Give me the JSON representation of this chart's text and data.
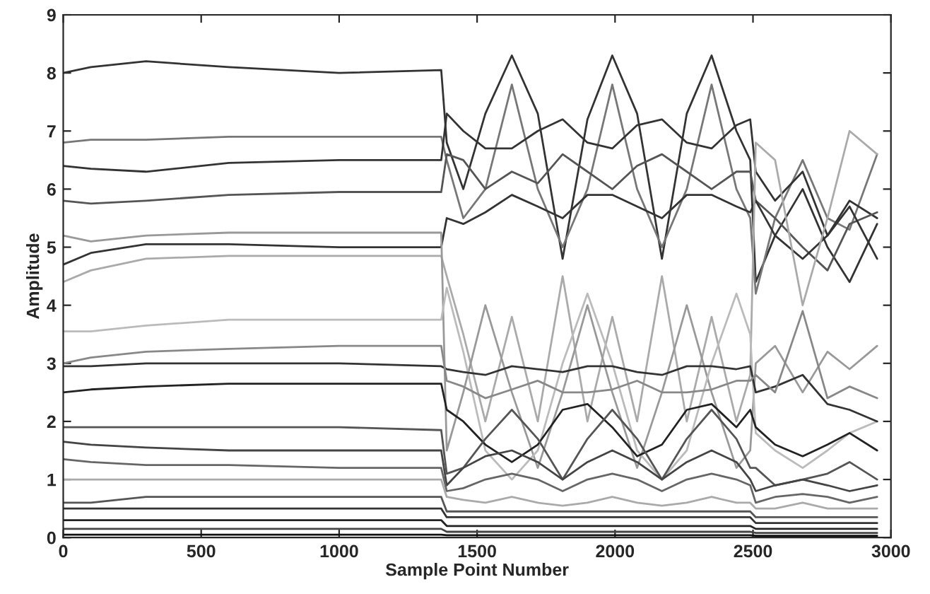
{
  "chart_data": {
    "type": "line",
    "xlabel": "Sample Point Number",
    "ylabel": "Amplitude",
    "xlim": [
      0,
      3000
    ],
    "ylim": [
      0,
      9
    ],
    "xticks": [
      0,
      500,
      1000,
      1500,
      2000,
      2500,
      3000
    ],
    "yticks": [
      0,
      1,
      2,
      3,
      4,
      5,
      6,
      7,
      8,
      9
    ],
    "grid": false,
    "legend": false,
    "line_style": "solid",
    "x": [
      0,
      100,
      300,
      600,
      1000,
      1370,
      1390,
      1450,
      1530,
      1626,
      1720,
      1810,
      1900,
      1990,
      2080,
      2170,
      2260,
      2350,
      2440,
      2490,
      2510,
      2580,
      2680,
      2770,
      2850,
      2950
    ],
    "series": [
      {
        "color": "#333333",
        "values": [
          8.0,
          8.1,
          8.2,
          8.1,
          8.0,
          8.05,
          6.8,
          6.0,
          7.3,
          8.3,
          7.3,
          4.8,
          7.2,
          8.3,
          7.3,
          4.8,
          7.3,
          8.3,
          7.0,
          6.5,
          4.4,
          5.2,
          6.0,
          5.0,
          4.4,
          5.4
        ]
      },
      {
        "color": "#777777",
        "values": [
          6.8,
          6.85,
          6.85,
          6.9,
          6.9,
          6.9,
          6.5,
          5.5,
          6.0,
          7.8,
          6.0,
          5.0,
          6.0,
          7.8,
          6.0,
          5.0,
          6.0,
          7.8,
          6.0,
          5.5,
          4.2,
          5.5,
          6.5,
          5.5,
          5.3,
          6.6
        ]
      },
      {
        "color": "#333333",
        "values": [
          6.4,
          6.35,
          6.3,
          6.45,
          6.5,
          6.5,
          7.3,
          7.0,
          6.7,
          6.7,
          7.0,
          7.2,
          6.8,
          6.7,
          7.1,
          7.2,
          6.8,
          6.7,
          7.1,
          7.2,
          6.3,
          5.8,
          6.3,
          5.2,
          5.8,
          5.5
        ]
      },
      {
        "color": "#555555",
        "values": [
          5.8,
          5.75,
          5.8,
          5.9,
          5.95,
          5.95,
          6.6,
          6.5,
          6.0,
          6.3,
          6.1,
          6.6,
          6.3,
          6.0,
          6.4,
          6.6,
          6.3,
          6.0,
          6.3,
          6.3,
          5.8,
          5.5,
          5.0,
          4.6,
          5.4,
          5.6
        ]
      },
      {
        "color": "#333333",
        "values": [
          4.7,
          4.9,
          5.05,
          5.05,
          5.0,
          5.0,
          5.5,
          5.4,
          5.6,
          5.9,
          5.7,
          5.5,
          5.9,
          5.9,
          5.7,
          5.5,
          5.9,
          5.9,
          5.7,
          5.6,
          5.8,
          5.2,
          4.8,
          5.2,
          5.7,
          4.8
        ]
      },
      {
        "color": "#aaaaaa",
        "values": [
          4.4,
          4.6,
          4.8,
          4.85,
          4.85,
          4.85,
          4.5,
          3.5,
          2.0,
          3.8,
          2.0,
          4.5,
          2.0,
          3.8,
          2.0,
          4.5,
          2.0,
          3.8,
          2.0,
          2.8,
          6.8,
          6.5,
          4.0,
          5.5,
          7.0,
          6.6
        ]
      },
      {
        "color": "#999999",
        "values": [
          5.2,
          5.1,
          5.2,
          5.25,
          5.25,
          5.25,
          1.5,
          2.5,
          4.0,
          2.5,
          1.2,
          2.5,
          4.0,
          2.5,
          1.2,
          2.5,
          4.0,
          2.5,
          1.2,
          1.5,
          3.0,
          3.3,
          2.5,
          3.2,
          2.9,
          3.3
        ]
      },
      {
        "color": "#bbbbbb",
        "values": [
          3.55,
          3.55,
          3.65,
          3.75,
          3.75,
          3.75,
          4.3,
          3.2,
          1.5,
          1.0,
          1.5,
          3.0,
          4.2,
          3.0,
          1.5,
          1.0,
          1.5,
          3.0,
          4.2,
          3.5,
          1.8,
          1.5,
          1.2,
          1.5,
          1.8,
          2.0
        ]
      },
      {
        "color": "#333333",
        "values": [
          2.95,
          2.95,
          3.0,
          3.0,
          3.0,
          2.95,
          2.9,
          2.85,
          2.8,
          2.95,
          2.9,
          2.85,
          2.95,
          2.95,
          2.85,
          2.8,
          2.95,
          2.95,
          2.9,
          2.95,
          2.5,
          2.6,
          2.8,
          2.3,
          2.2,
          2.0
        ]
      },
      {
        "color": "#888888",
        "values": [
          3.0,
          3.1,
          3.2,
          3.25,
          3.3,
          3.3,
          2.7,
          2.6,
          2.4,
          2.55,
          2.7,
          2.5,
          2.5,
          2.55,
          2.7,
          2.5,
          2.5,
          2.55,
          2.7,
          2.7,
          2.8,
          2.5,
          3.9,
          2.4,
          2.6,
          2.4
        ]
      },
      {
        "color": "#222222",
        "values": [
          2.5,
          2.55,
          2.6,
          2.65,
          2.65,
          2.65,
          2.2,
          2.0,
          1.6,
          1.3,
          1.6,
          2.2,
          2.3,
          1.9,
          1.4,
          1.6,
          2.2,
          2.3,
          1.9,
          2.2,
          1.9,
          1.6,
          1.4,
          1.6,
          1.8,
          1.5
        ]
      },
      {
        "color": "#555555",
        "values": [
          1.9,
          1.9,
          1.9,
          1.9,
          1.9,
          1.85,
          1.1,
          1.2,
          1.7,
          2.2,
          1.7,
          1.0,
          1.7,
          2.2,
          1.7,
          1.0,
          1.7,
          2.2,
          1.7,
          1.2,
          1.2,
          0.9,
          1.0,
          1.1,
          1.3,
          1.0
        ]
      },
      {
        "color": "#444444",
        "values": [
          1.65,
          1.6,
          1.55,
          1.5,
          1.5,
          1.5,
          0.9,
          1.2,
          1.4,
          1.5,
          1.3,
          1.0,
          1.3,
          1.5,
          1.3,
          1.0,
          1.3,
          1.5,
          1.3,
          1.0,
          0.8,
          0.9,
          1.0,
          0.9,
          0.8,
          0.9
        ]
      },
      {
        "color": "#666666",
        "values": [
          1.35,
          1.3,
          1.25,
          1.25,
          1.2,
          1.2,
          0.8,
          0.85,
          1.0,
          1.1,
          1.0,
          0.8,
          1.0,
          1.1,
          1.0,
          0.8,
          1.0,
          1.1,
          1.0,
          0.9,
          0.6,
          0.7,
          0.75,
          0.7,
          0.6,
          0.7
        ]
      },
      {
        "color": "#aaaaaa",
        "values": [
          1.0,
          1.0,
          1.0,
          1.0,
          1.0,
          1.0,
          0.7,
          0.65,
          0.6,
          0.7,
          0.6,
          0.55,
          0.6,
          0.7,
          0.6,
          0.55,
          0.6,
          0.7,
          0.6,
          0.6,
          0.5,
          0.5,
          0.6,
          0.5,
          0.5,
          0.5
        ]
      },
      {
        "color": "#555555",
        "values": [
          0.6,
          0.6,
          0.7,
          0.7,
          0.7,
          0.7,
          0.45,
          0.45,
          0.45,
          0.45,
          0.45,
          0.45,
          0.45,
          0.45,
          0.45,
          0.45,
          0.45,
          0.45,
          0.45,
          0.45,
          0.35,
          0.35,
          0.35,
          0.35,
          0.35,
          0.35
        ]
      },
      {
        "color": "#333333",
        "values": [
          0.5,
          0.5,
          0.5,
          0.5,
          0.5,
          0.5,
          0.35,
          0.35,
          0.35,
          0.35,
          0.35,
          0.35,
          0.35,
          0.35,
          0.35,
          0.35,
          0.35,
          0.35,
          0.35,
          0.35,
          0.25,
          0.25,
          0.25,
          0.25,
          0.25,
          0.25
        ]
      },
      {
        "color": "#222222",
        "values": [
          0.3,
          0.3,
          0.3,
          0.3,
          0.3,
          0.3,
          0.2,
          0.2,
          0.2,
          0.2,
          0.2,
          0.2,
          0.2,
          0.2,
          0.2,
          0.2,
          0.2,
          0.2,
          0.2,
          0.2,
          0.15,
          0.15,
          0.15,
          0.15,
          0.15,
          0.15
        ]
      },
      {
        "color": "#444444",
        "values": [
          0.15,
          0.15,
          0.15,
          0.15,
          0.15,
          0.15,
          0.1,
          0.1,
          0.1,
          0.1,
          0.1,
          0.1,
          0.1,
          0.1,
          0.1,
          0.1,
          0.1,
          0.1,
          0.1,
          0.1,
          0.08,
          0.08,
          0.08,
          0.08,
          0.08,
          0.08
        ]
      },
      {
        "color": "#111111",
        "values": [
          0.05,
          0.05,
          0.05,
          0.05,
          0.05,
          0.05,
          0.04,
          0.04,
          0.04,
          0.04,
          0.04,
          0.04,
          0.04,
          0.04,
          0.04,
          0.04,
          0.04,
          0.04,
          0.04,
          0.04,
          0.03,
          0.03,
          0.03,
          0.03,
          0.03,
          0.03
        ]
      }
    ]
  }
}
